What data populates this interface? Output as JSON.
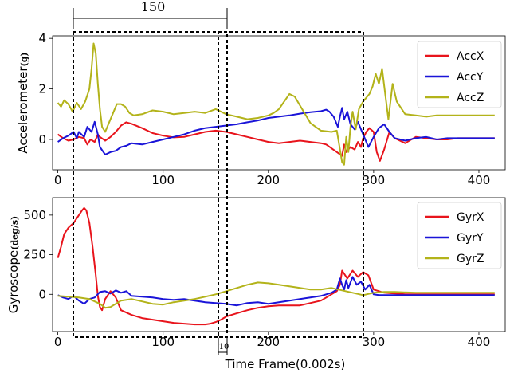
{
  "chart_data": [
    {
      "type": "line",
      "ylabel_text": "Accelerometer",
      "ylabel_unit": "(g)",
      "xlim": [
        -5,
        425
      ],
      "ylim": [
        -1.2,
        4.1
      ],
      "xticks": [
        0,
        100,
        200,
        300,
        400
      ],
      "yticks": [
        0,
        2,
        4
      ],
      "legend": "top-right",
      "grid": false,
      "series": [
        {
          "name": "AccX",
          "color": "#e8141c",
          "x": [
            0,
            5,
            10,
            15,
            20,
            25,
            28,
            31,
            35,
            38,
            40,
            45,
            50,
            55,
            60,
            65,
            70,
            80,
            90,
            100,
            110,
            120,
            130,
            140,
            150,
            160,
            170,
            180,
            190,
            200,
            210,
            220,
            230,
            240,
            250,
            255,
            260,
            265,
            270,
            272,
            274,
            278,
            282,
            285,
            288,
            290,
            293,
            296,
            300,
            303,
            306,
            310,
            315,
            320,
            330,
            340,
            350,
            360,
            370,
            380,
            390,
            400,
            410,
            415
          ],
          "y": [
            0.2,
            0.05,
            -0.05,
            0.0,
            0.1,
            0.05,
            -0.2,
            0.0,
            -0.1,
            0.2,
            0.1,
            -0.05,
            0.1,
            0.3,
            0.55,
            0.68,
            0.62,
            0.45,
            0.25,
            0.15,
            0.08,
            0.1,
            0.2,
            0.3,
            0.35,
            0.3,
            0.2,
            0.1,
            0.0,
            -0.1,
            -0.15,
            -0.1,
            -0.05,
            -0.1,
            -0.15,
            -0.2,
            -0.35,
            -0.5,
            -0.65,
            -0.2,
            -0.5,
            -0.3,
            -0.4,
            -0.1,
            -0.3,
            0.05,
            0.3,
            0.45,
            0.3,
            -0.5,
            -0.85,
            -0.4,
            0.3,
            0.05,
            -0.15,
            0.1,
            0.05,
            0.0,
            0.0,
            0.05,
            0.05,
            0.05,
            0.05,
            0.05
          ]
        },
        {
          "name": "AccY",
          "color": "#1a14d8",
          "x": [
            0,
            5,
            10,
            15,
            18,
            20,
            25,
            28,
            32,
            35,
            38,
            40,
            45,
            50,
            55,
            60,
            65,
            70,
            80,
            90,
            100,
            110,
            120,
            130,
            140,
            150,
            160,
            170,
            180,
            190,
            200,
            210,
            220,
            230,
            240,
            250,
            255,
            258,
            262,
            266,
            268,
            270,
            272,
            275,
            278,
            282,
            285,
            290,
            295,
            300,
            305,
            310,
            315,
            320,
            330,
            340,
            350,
            360,
            370,
            380,
            390,
            400,
            410,
            415
          ],
          "y": [
            -0.1,
            0.05,
            0.15,
            0.3,
            0.05,
            0.3,
            0.1,
            0.5,
            0.3,
            0.7,
            0.2,
            -0.3,
            -0.6,
            -0.5,
            -0.45,
            -0.3,
            -0.25,
            -0.15,
            -0.2,
            -0.1,
            0.0,
            0.1,
            0.2,
            0.35,
            0.45,
            0.5,
            0.55,
            0.6,
            0.68,
            0.75,
            0.85,
            0.9,
            0.95,
            1.02,
            1.08,
            1.12,
            1.18,
            1.1,
            0.9,
            0.5,
            0.9,
            1.25,
            0.8,
            1.1,
            0.6,
            0.4,
            0.7,
            0.2,
            -0.3,
            0.1,
            0.45,
            0.6,
            0.3,
            0.05,
            -0.05,
            0.05,
            0.1,
            0.0,
            0.05,
            0.05,
            0.05,
            0.05,
            0.05,
            0.05
          ]
        },
        {
          "name": "AccZ",
          "color": "#b3b31a",
          "x": [
            0,
            3,
            6,
            10,
            14,
            18,
            22,
            26,
            30,
            32,
            34,
            36,
            38,
            40,
            42,
            45,
            48,
            52,
            56,
            60,
            64,
            68,
            72,
            80,
            90,
            100,
            110,
            120,
            130,
            140,
            150,
            160,
            170,
            180,
            190,
            200,
            205,
            210,
            215,
            220,
            225,
            230,
            235,
            240,
            250,
            260,
            265,
            270,
            272,
            274,
            276,
            278,
            280,
            283,
            286,
            290,
            293,
            296,
            299,
            302,
            305,
            308,
            311,
            314,
            318,
            322,
            330,
            340,
            350,
            360,
            370,
            380,
            390,
            400,
            410,
            415
          ],
          "y": [
            1.45,
            1.3,
            1.55,
            1.4,
            1.1,
            1.45,
            1.2,
            1.5,
            2.0,
            2.8,
            3.8,
            3.4,
            2.2,
            1.2,
            0.5,
            0.3,
            0.6,
            1.0,
            1.4,
            1.4,
            1.3,
            1.05,
            0.95,
            1.0,
            1.15,
            1.1,
            1.0,
            1.05,
            1.1,
            1.05,
            1.2,
            1.0,
            0.9,
            0.8,
            0.85,
            0.95,
            1.05,
            1.2,
            1.5,
            1.8,
            1.7,
            1.35,
            1.0,
            0.65,
            0.35,
            0.3,
            0.35,
            -0.9,
            -1.0,
            0.1,
            -0.5,
            0.5,
            1.1,
            0.4,
            1.2,
            1.5,
            1.65,
            1.8,
            2.1,
            2.6,
            2.2,
            2.8,
            1.8,
            0.8,
            2.2,
            1.5,
            1.0,
            0.95,
            0.9,
            0.95,
            0.95,
            0.95,
            0.95,
            0.95,
            0.95,
            0.95
          ]
        }
      ]
    },
    {
      "type": "line",
      "ylabel_text": "Gyroscope",
      "ylabel_unit": "(deg/s)",
      "xlim": [
        -5,
        425
      ],
      "ylim": [
        -235,
        610
      ],
      "xticks": [
        0,
        100,
        200,
        300,
        400
      ],
      "yticks": [
        0,
        250,
        500
      ],
      "legend": "top-right",
      "grid": false,
      "series": [
        {
          "name": "GyrX",
          "color": "#e8141c",
          "x": [
            0,
            3,
            6,
            10,
            15,
            20,
            23,
            25,
            27,
            30,
            33,
            36,
            38,
            40,
            42,
            45,
            50,
            55,
            60,
            70,
            80,
            90,
            100,
            110,
            120,
            130,
            140,
            145,
            150,
            155,
            160,
            170,
            180,
            190,
            200,
            210,
            220,
            230,
            240,
            250,
            255,
            260,
            265,
            268,
            270,
            275,
            280,
            285,
            290,
            295,
            300,
            305,
            310,
            320,
            330,
            340,
            350,
            360,
            370,
            380,
            390,
            400,
            410,
            415
          ],
          "y": [
            230,
            300,
            380,
            420,
            450,
            500,
            530,
            545,
            530,
            450,
            300,
            120,
            -10,
            -80,
            -100,
            -30,
            20,
            -20,
            -100,
            -130,
            -150,
            -160,
            -170,
            -180,
            -185,
            -190,
            -190,
            -185,
            -175,
            -160,
            -140,
            -120,
            -100,
            -85,
            -75,
            -70,
            -70,
            -70,
            -55,
            -40,
            -20,
            0,
            20,
            60,
            150,
            100,
            150,
            110,
            140,
            120,
            30,
            20,
            10,
            5,
            0,
            0,
            0,
            0,
            0,
            0,
            0,
            0,
            0,
            0
          ]
        },
        {
          "name": "GyrY",
          "color": "#1a14d8",
          "x": [
            0,
            5,
            10,
            15,
            20,
            25,
            30,
            35,
            40,
            45,
            50,
            55,
            60,
            65,
            70,
            80,
            90,
            100,
            110,
            120,
            130,
            140,
            150,
            160,
            170,
            180,
            190,
            200,
            210,
            220,
            230,
            240,
            250,
            255,
            260,
            265,
            268,
            270,
            272,
            274,
            276,
            280,
            284,
            288,
            292,
            296,
            300,
            305,
            310,
            320,
            330,
            340,
            350,
            360,
            370,
            380,
            390,
            400,
            410,
            415
          ],
          "y": [
            -5,
            -20,
            -30,
            -10,
            -40,
            -60,
            -30,
            -20,
            15,
            20,
            5,
            25,
            10,
            20,
            -10,
            -15,
            -20,
            -30,
            -35,
            -30,
            -40,
            -50,
            -55,
            -60,
            -70,
            -55,
            -50,
            -60,
            -50,
            -40,
            -30,
            -20,
            -10,
            0,
            10,
            30,
            100,
            60,
            30,
            90,
            40,
            110,
            60,
            80,
            30,
            60,
            0,
            -5,
            -5,
            -5,
            -5,
            -5,
            -5,
            -5,
            -5,
            -5,
            -5,
            -5,
            -5,
            -5
          ]
        },
        {
          "name": "GyrZ",
          "color": "#b3b31a",
          "x": [
            0,
            10,
            20,
            30,
            40,
            45,
            50,
            60,
            70,
            80,
            90,
            100,
            110,
            120,
            130,
            140,
            150,
            160,
            170,
            180,
            190,
            200,
            210,
            220,
            230,
            240,
            250,
            260,
            270,
            280,
            290,
            300,
            310,
            320,
            340,
            360,
            380,
            400,
            415
          ],
          "y": [
            -10,
            -15,
            -20,
            -30,
            -60,
            -85,
            -80,
            -40,
            -30,
            -45,
            -60,
            -65,
            -50,
            -40,
            -30,
            -15,
            0,
            20,
            40,
            60,
            75,
            70,
            60,
            50,
            40,
            30,
            30,
            40,
            25,
            10,
            -5,
            10,
            15,
            15,
            10,
            10,
            10,
            10,
            10
          ]
        }
      ]
    }
  ],
  "annotations": {
    "window_width_label": "150",
    "step_label": "10",
    "xlabel": "Time Frame(0.002s)"
  }
}
